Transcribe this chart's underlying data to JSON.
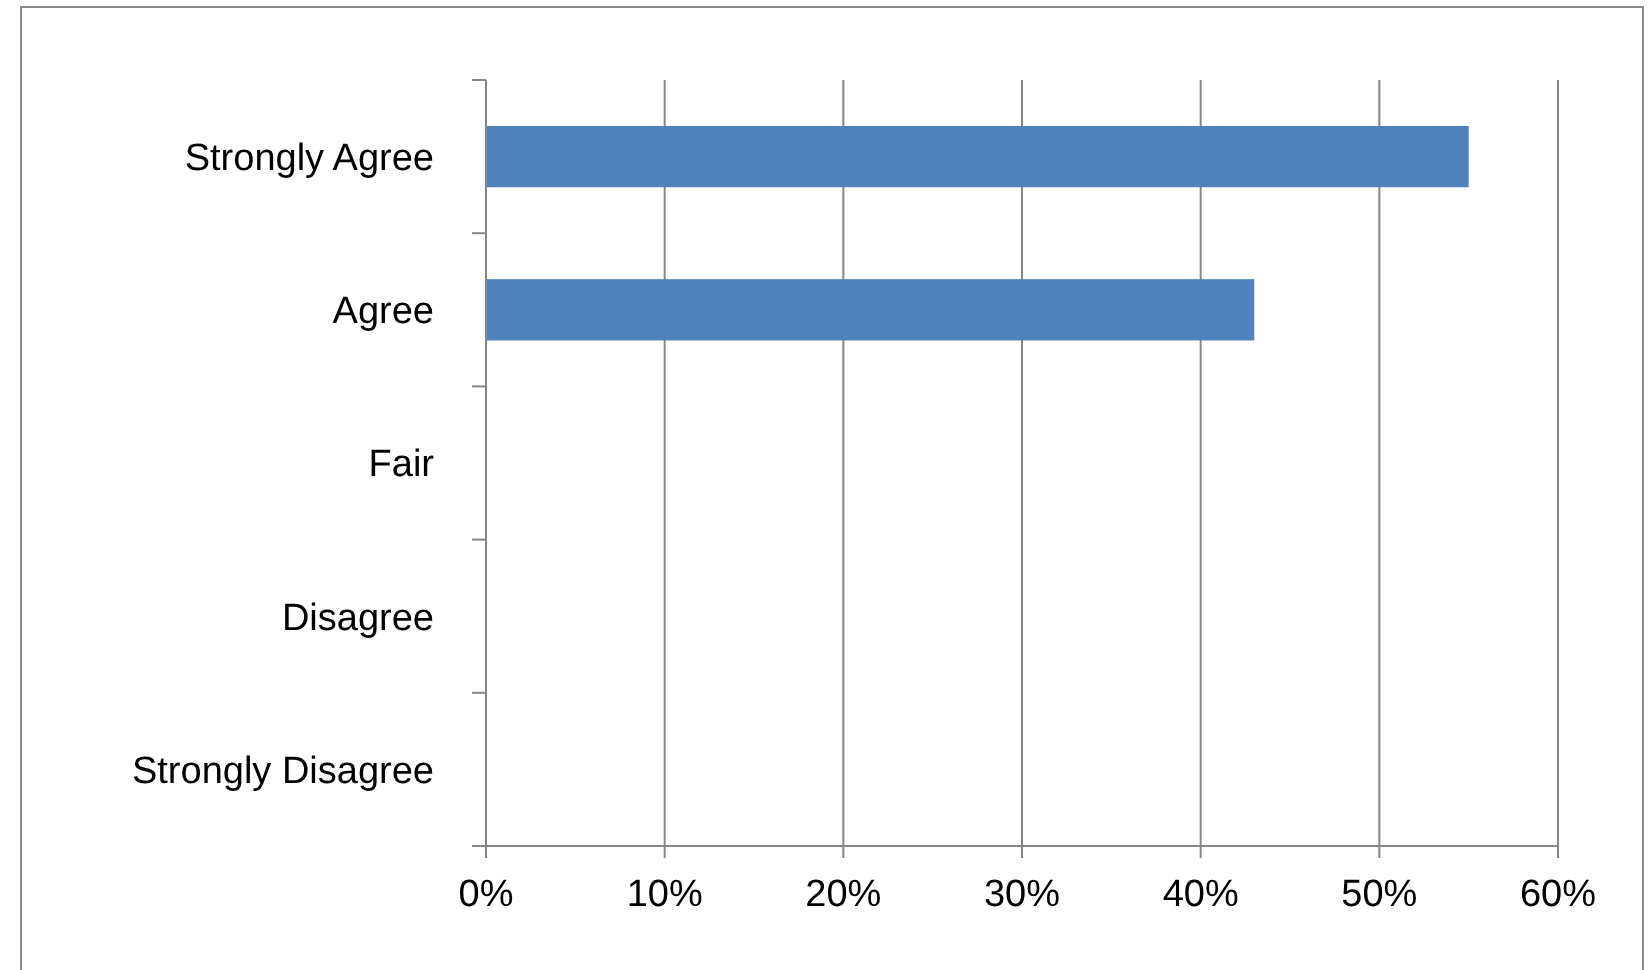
{
  "chart_data": {
    "type": "bar",
    "orientation": "horizontal",
    "categories": [
      "Strongly Agree",
      "Agree",
      "Fair",
      "Disagree",
      "Strongly Disagree"
    ],
    "values": [
      55,
      43,
      0,
      0,
      0
    ],
    "color": "#4f81bd",
    "xlim": [
      0,
      60
    ],
    "xticks": [
      {
        "value": 0,
        "label": "0%"
      },
      {
        "value": 10,
        "label": "10%"
      },
      {
        "value": 20,
        "label": "20%"
      },
      {
        "value": 30,
        "label": "30%"
      },
      {
        "value": 40,
        "label": "40%"
      },
      {
        "value": 50,
        "label": "50%"
      },
      {
        "value": 60,
        "label": "60%"
      }
    ],
    "grid": "x"
  }
}
